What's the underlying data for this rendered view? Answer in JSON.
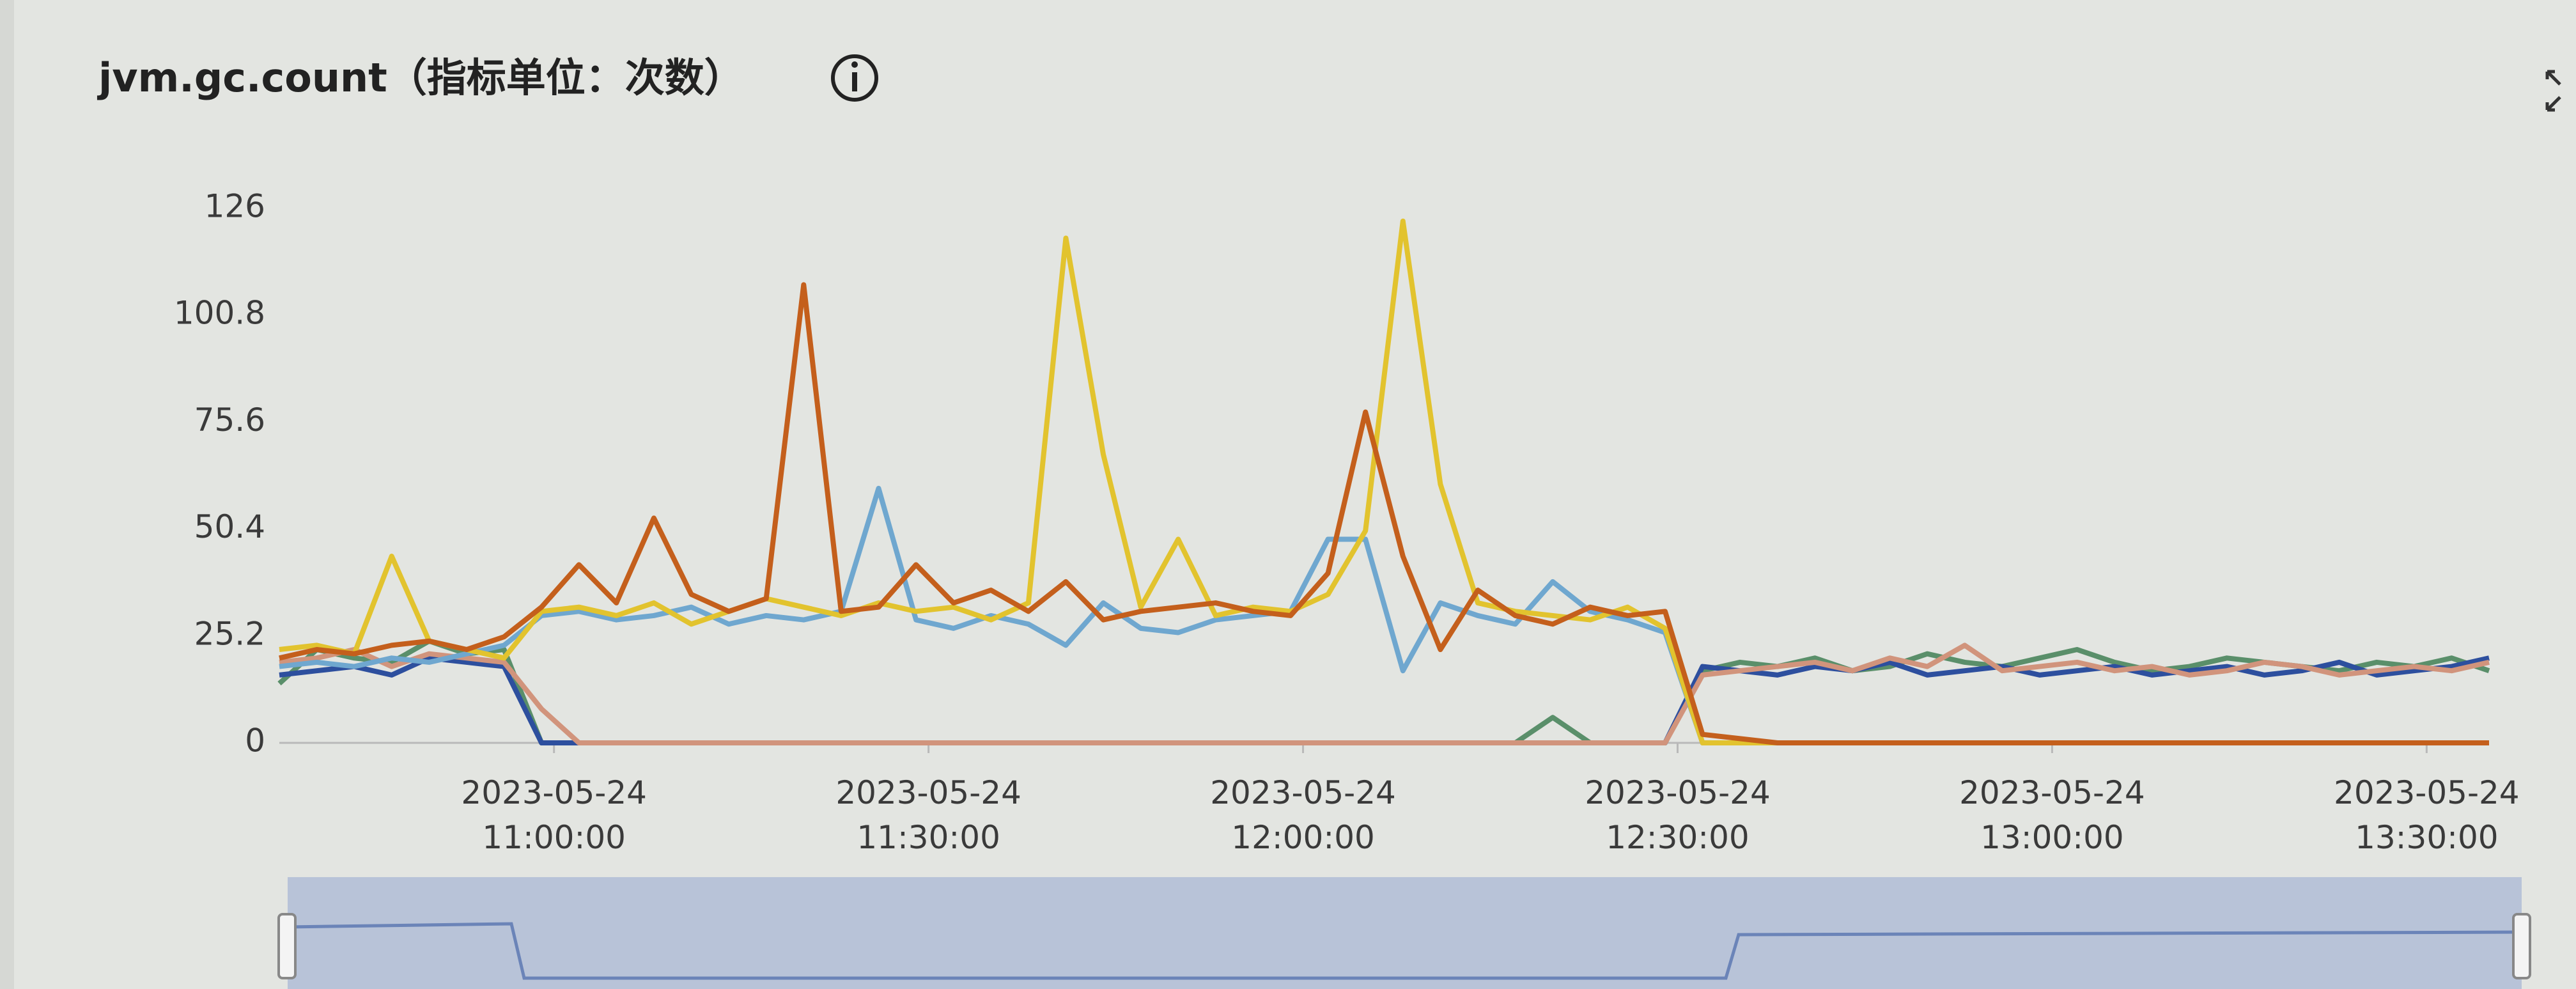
{
  "chart_data": {
    "type": "line",
    "title": "jvm.gc.count（指标单位：次数）",
    "x": [
      "2023-05-24 10:38:00",
      "2023-05-24 10:41:00",
      "2023-05-24 10:44:00",
      "2023-05-24 10:47:00",
      "2023-05-24 10:50:00",
      "2023-05-24 10:53:00",
      "2023-05-24 10:56:00",
      "2023-05-24 10:59:00",
      "2023-05-24 11:02:00",
      "2023-05-24 11:05:00",
      "2023-05-24 11:08:00",
      "2023-05-24 11:11:00",
      "2023-05-24 11:14:00",
      "2023-05-24 11:17:00",
      "2023-05-24 11:20:00",
      "2023-05-24 11:23:00",
      "2023-05-24 11:26:00",
      "2023-05-24 11:29:00",
      "2023-05-24 11:32:00",
      "2023-05-24 11:35:00",
      "2023-05-24 11:38:00",
      "2023-05-24 11:41:00",
      "2023-05-24 11:44:00",
      "2023-05-24 11:47:00",
      "2023-05-24 11:50:00",
      "2023-05-24 11:53:00",
      "2023-05-24 11:56:00",
      "2023-05-24 11:59:00",
      "2023-05-24 12:02:00",
      "2023-05-24 12:05:00",
      "2023-05-24 12:08:00",
      "2023-05-24 12:11:00",
      "2023-05-24 12:14:00",
      "2023-05-24 12:17:00",
      "2023-05-24 12:20:00",
      "2023-05-24 12:23:00",
      "2023-05-24 12:26:00",
      "2023-05-24 12:29:00",
      "2023-05-24 12:32:00",
      "2023-05-24 12:35:00",
      "2023-05-24 12:38:00",
      "2023-05-24 12:41:00",
      "2023-05-24 12:44:00",
      "2023-05-24 12:47:00",
      "2023-05-24 12:50:00",
      "2023-05-24 12:53:00",
      "2023-05-24 12:56:00",
      "2023-05-24 12:59:00",
      "2023-05-24 13:02:00",
      "2023-05-24 13:05:00",
      "2023-05-24 13:08:00",
      "2023-05-24 13:11:00",
      "2023-05-24 13:14:00",
      "2023-05-24 13:17:00",
      "2023-05-24 13:20:00",
      "2023-05-24 13:23:00",
      "2023-05-24 13:26:00",
      "2023-05-24 13:29:00",
      "2023-05-24 13:32:00",
      "2023-05-24 13:35:00"
    ],
    "xlim": [
      "2023-05-24 10:38:00",
      "2023-05-24 13:35:00"
    ],
    "xticks": [
      "2023-05-24 11:00:00",
      "2023-05-24 11:30:00",
      "2023-05-24 12:00:00",
      "2023-05-24 12:30:00",
      "2023-05-24 13:00:00",
      "2023-05-24 13:30:00"
    ],
    "ylim": [
      0,
      126
    ],
    "yticks": [
      0,
      25.2,
      50.4,
      75.6,
      100.8,
      126
    ],
    "grid": false,
    "series": [
      {
        "color": "#5a8f6a",
        "values": [
          14,
          22,
          20,
          19,
          24,
          21,
          22,
          0,
          0,
          0,
          0,
          0,
          0,
          0,
          0,
          0,
          0,
          0,
          0,
          0,
          0,
          0,
          0,
          0,
          0,
          0,
          0,
          0,
          0,
          0,
          0,
          0,
          0,
          0,
          6,
          0,
          0,
          0,
          17,
          19,
          18,
          20,
          17,
          18,
          21,
          19,
          18,
          20,
          22,
          19,
          17,
          18,
          20,
          19,
          18,
          17,
          19,
          18,
          20,
          17
        ]
      },
      {
        "color": "#2d4f9e",
        "values": [
          16,
          17,
          18,
          16,
          20,
          19,
          18,
          0,
          0,
          0,
          0,
          0,
          0,
          0,
          0,
          0,
          0,
          0,
          0,
          0,
          0,
          0,
          0,
          0,
          0,
          0,
          0,
          0,
          0,
          0,
          0,
          0,
          0,
          0,
          0,
          0,
          0,
          0,
          18,
          17,
          16,
          18,
          17,
          19,
          16,
          17,
          18,
          16,
          17,
          18,
          16,
          17,
          18,
          16,
          17,
          19,
          16,
          17,
          18,
          20
        ]
      },
      {
        "color": "#d1947c",
        "values": [
          19,
          20,
          22,
          18,
          21,
          20,
          19,
          8,
          0,
          0,
          0,
          0,
          0,
          0,
          0,
          0,
          0,
          0,
          0,
          0,
          0,
          0,
          0,
          0,
          0,
          0,
          0,
          0,
          0,
          0,
          0,
          0,
          0,
          0,
          0,
          0,
          0,
          0,
          16,
          17,
          18,
          19,
          17,
          20,
          18,
          23,
          17,
          18,
          19,
          17,
          18,
          16,
          17,
          19,
          18,
          16,
          17,
          18,
          17,
          19
        ]
      },
      {
        "color": "#6fa7cf",
        "values": [
          18,
          19,
          18,
          20,
          19,
          21,
          23,
          30,
          31,
          29,
          30,
          32,
          28,
          30,
          29,
          31,
          60,
          29,
          27,
          30,
          28,
          23,
          33,
          27,
          26,
          29,
          30,
          31,
          48,
          48,
          17,
          33,
          30,
          28,
          38,
          31,
          29,
          26,
          0,
          0,
          0,
          0,
          0,
          0,
          0,
          0,
          0,
          0,
          0,
          0,
          0,
          0,
          0,
          0,
          0,
          0,
          0,
          0,
          0,
          0
        ]
      },
      {
        "color": "#e2c32e",
        "values": [
          22,
          23,
          21,
          44,
          24,
          22,
          20,
          31,
          32,
          30,
          33,
          28,
          31,
          34,
          32,
          30,
          33,
          31,
          32,
          29,
          33,
          119,
          68,
          32,
          48,
          30,
          32,
          31,
          35,
          50,
          123,
          61,
          33,
          31,
          30,
          29,
          32,
          27,
          0,
          0,
          0,
          0,
          0,
          0,
          0,
          0,
          0,
          0,
          0,
          0,
          0,
          0,
          0,
          0,
          0,
          0,
          0,
          0,
          0,
          0
        ]
      },
      {
        "color": "#c45f1c",
        "values": [
          20,
          22,
          21,
          23,
          24,
          22,
          25,
          32,
          42,
          33,
          53,
          35,
          31,
          34,
          108,
          31,
          32,
          42,
          33,
          36,
          31,
          38,
          29,
          31,
          32,
          33,
          31,
          30,
          40,
          78,
          44,
          22,
          36,
          30,
          28,
          32,
          30,
          31,
          2,
          1,
          0,
          0,
          0,
          0,
          0,
          0,
          0,
          0,
          0,
          0,
          0,
          0,
          0,
          0,
          0,
          0,
          0,
          0,
          0,
          0
        ]
      }
    ]
  }
}
